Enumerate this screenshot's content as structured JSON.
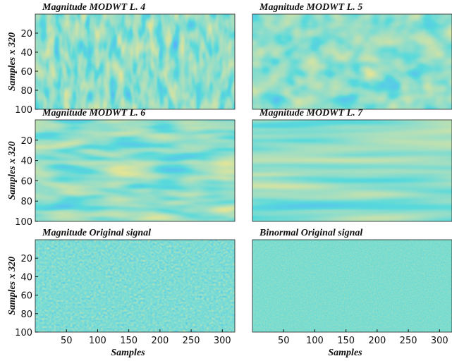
{
  "chart_data": [
    {
      "type": "heatmap",
      "title": "Magnitude MODWT L. 4",
      "ylabel": "Samples x 320",
      "ylim": [
        0,
        100
      ],
      "yticks": [
        20,
        40,
        60,
        80,
        100
      ]
    },
    {
      "type": "heatmap",
      "title": "Magnitude MODWT L. 5"
    },
    {
      "type": "heatmap",
      "title": "Magnitude MODWT L. 6",
      "ylabel": "Samples x 320",
      "ylim": [
        0,
        100
      ],
      "yticks": [
        20,
        40,
        60,
        80,
        100
      ]
    },
    {
      "type": "heatmap",
      "title": "Magnitude MODWT L. 7"
    },
    {
      "type": "heatmap",
      "title": "Magnitude Original signal",
      "ylabel": "Samples x 320",
      "xlabel": "Samples",
      "ylim": [
        0,
        100
      ],
      "yticks": [
        20,
        40,
        60,
        80,
        100
      ],
      "xlim": [
        0,
        320
      ],
      "xticks": [
        50,
        100,
        150,
        200,
        250,
        300
      ]
    },
    {
      "type": "heatmap",
      "title": "Binormal Original signal",
      "xlabel": "Samples",
      "xlim": [
        0,
        320
      ],
      "xticks": [
        50,
        100,
        150,
        200,
        250,
        300
      ]
    }
  ]
}
